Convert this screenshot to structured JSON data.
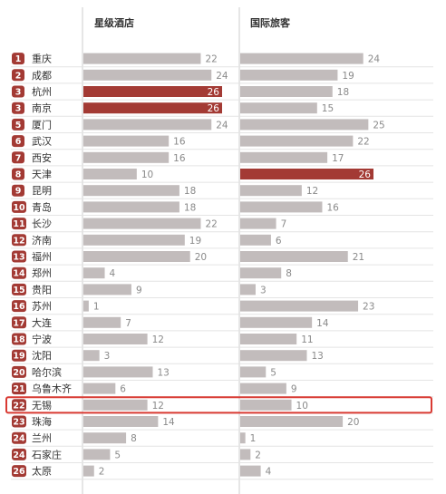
{
  "colors": {
    "rank_badge": "#a33a34",
    "bar_default": "#c2bcbc",
    "bar_highlight": "#a33a34",
    "row_line": "#e4e4e4",
    "highlight_box": "#d93a33"
  },
  "chart_data": {
    "type": "bar",
    "orientation": "horizontal",
    "series": [
      {
        "name": "星级酒店",
        "highlight": [
          "杭州",
          "南京"
        ],
        "values": [
          22,
          24,
          26,
          26,
          24,
          16,
          16,
          10,
          18,
          18,
          22,
          19,
          20,
          4,
          9,
          1,
          7,
          12,
          3,
          13,
          6,
          12,
          14,
          8,
          5,
          2
        ]
      },
      {
        "name": "国际旅客",
        "highlight": [
          "天津"
        ],
        "values": [
          24,
          19,
          18,
          15,
          25,
          22,
          17,
          26,
          12,
          16,
          7,
          6,
          21,
          8,
          3,
          23,
          14,
          11,
          13,
          5,
          9,
          10,
          20,
          1,
          2,
          4
        ]
      }
    ],
    "categories": [
      "重庆",
      "成都",
      "杭州",
      "南京",
      "厦门",
      "武汉",
      "西安",
      "天津",
      "昆明",
      "青岛",
      "长沙",
      "济南",
      "福州",
      "郑州",
      "贵阳",
      "苏州",
      "大连",
      "宁波",
      "沈阳",
      "哈尔滨",
      "乌鲁木齐",
      "无锡",
      "珠海",
      "兰州",
      "石家庄",
      "太原"
    ],
    "ranks": [
      "1",
      "2",
      "3",
      "3",
      "5",
      "6",
      "7",
      "8",
      "9",
      "10",
      "11",
      "12",
      "13",
      "14",
      "15",
      "16",
      "17",
      "18",
      "19",
      "20",
      "21",
      "22",
      "23",
      "24",
      "24",
      "26"
    ],
    "highlighted_row": "无锡",
    "xlim": [
      0,
      26
    ]
  }
}
